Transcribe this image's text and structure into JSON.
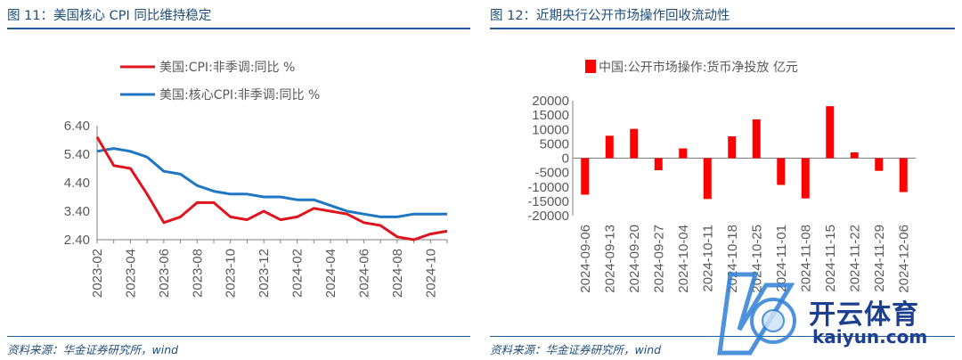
{
  "left_panel": {
    "title": "图 11：美国核心 CPI 同比维持稳定",
    "source": "资料来源：华金证券研究所，wind"
  },
  "right_panel": {
    "title": "图 12：近期央行公开市场操作回收流动性",
    "source": "资料来源：华金证券研究所，wind"
  },
  "watermark": {
    "name": "开云体育",
    "url": "kaiyun.com"
  },
  "chart_data": [
    {
      "type": "line",
      "title": "",
      "xlabel": "",
      "ylabel": "",
      "ylim": [
        2.4,
        6.4
      ],
      "yticks": [
        "6.40",
        "5.40",
        "4.40",
        "3.40",
        "2.40"
      ],
      "ytick_values": [
        6.4,
        5.4,
        4.4,
        3.4,
        2.4
      ],
      "x_tick_labels": [
        "2023-02",
        "2023-04",
        "2023-06",
        "2023-08",
        "2023-10",
        "2023-12",
        "2024-02",
        "2024-04",
        "2024-06",
        "2024-08",
        "2024-10"
      ],
      "x": [
        "2023-02",
        "2023-03",
        "2023-04",
        "2023-05",
        "2023-06",
        "2023-07",
        "2023-08",
        "2023-09",
        "2023-10",
        "2023-11",
        "2023-12",
        "2024-01",
        "2024-02",
        "2024-03",
        "2024-04",
        "2024-05",
        "2024-06",
        "2024-07",
        "2024-08",
        "2024-09",
        "2024-10",
        "2024-11"
      ],
      "legend_position": "top",
      "series": [
        {
          "name": "美国:CPI:非季调:同比 %",
          "color": "#e0141e",
          "values": [
            6.0,
            5.0,
            4.9,
            4.0,
            3.0,
            3.2,
            3.7,
            3.7,
            3.2,
            3.1,
            3.4,
            3.1,
            3.2,
            3.5,
            3.4,
            3.3,
            3.0,
            2.9,
            2.5,
            2.4,
            2.6,
            2.7
          ]
        },
        {
          "name": "美国:核心CPI:非季调:同比 %",
          "color": "#1f77c4",
          "values": [
            5.5,
            5.6,
            5.5,
            5.3,
            4.8,
            4.7,
            4.3,
            4.1,
            4.0,
            4.0,
            3.9,
            3.9,
            3.8,
            3.8,
            3.6,
            3.4,
            3.3,
            3.2,
            3.2,
            3.3,
            3.3,
            3.3
          ]
        }
      ]
    },
    {
      "type": "bar",
      "title": "",
      "xlabel": "",
      "ylabel": "",
      "ylim": [
        -20000,
        20000
      ],
      "yticks": [
        "20000",
        "15000",
        "10000",
        "5000",
        "0",
        "-5000",
        "-10000",
        "-15000",
        "-20000"
      ],
      "ytick_values": [
        20000,
        15000,
        10000,
        5000,
        0,
        -5000,
        -10000,
        -15000,
        -20000
      ],
      "categories": [
        "2024-09-06",
        "2024-09-13",
        "2024-09-20",
        "2024-09-27",
        "2024-10-04",
        "2024-10-11",
        "2024-10-18",
        "2024-10-25",
        "2024-11-01",
        "2024-11-08",
        "2024-11-15",
        "2024-11-22",
        "2024-11-29",
        "2024-12-06"
      ],
      "legend_position": "top",
      "series": [
        {
          "name": "中国:公开市场操作:货币净投放 亿元",
          "color": "#ff0000",
          "values": [
            -12700,
            7800,
            10200,
            -4200,
            3400,
            -14200,
            7600,
            13500,
            -9300,
            -14000,
            18100,
            2000,
            -4400,
            -11800
          ]
        }
      ]
    }
  ]
}
